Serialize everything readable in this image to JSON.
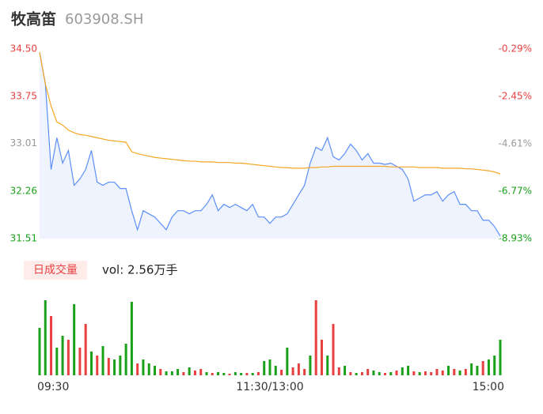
{
  "header": {
    "name": "牧高笛",
    "code": "603908.SH"
  },
  "chart_data": [
    {
      "type": "line",
      "series": [
        {
          "name": "price",
          "color": "#5b8ff9",
          "fill": "#eef3fd",
          "values": [
            34.45,
            33.96,
            32.6,
            33.1,
            32.7,
            32.9,
            32.35,
            32.45,
            32.6,
            32.9,
            32.4,
            32.35,
            32.4,
            32.4,
            32.3,
            32.3,
            31.95,
            31.65,
            31.95,
            31.9,
            31.85,
            31.75,
            31.65,
            31.85,
            31.95,
            31.95,
            31.9,
            31.95,
            31.95,
            32.05,
            32.2,
            31.95,
            32.05,
            32.0,
            32.05,
            32.0,
            31.95,
            32.05,
            31.85,
            31.85,
            31.75,
            31.85,
            31.85,
            31.9,
            32.05,
            32.2,
            32.35,
            32.7,
            32.95,
            32.9,
            33.1,
            32.8,
            32.75,
            32.85,
            33.0,
            32.9,
            32.75,
            32.85,
            32.7,
            32.7,
            32.68,
            32.7,
            32.65,
            32.6,
            32.45,
            32.1,
            32.15,
            32.2,
            32.2,
            32.25,
            32.1,
            32.2,
            32.25,
            32.05,
            32.05,
            31.95,
            31.95,
            31.8,
            31.8,
            31.7,
            31.55
          ]
        },
        {
          "name": "average",
          "color": "#f5a623",
          "values": [
            34.45,
            33.95,
            33.6,
            33.35,
            33.3,
            33.22,
            33.18,
            33.15,
            33.14,
            33.12,
            33.1,
            33.08,
            33.06,
            33.05,
            33.04,
            33.03,
            32.88,
            32.85,
            32.83,
            32.81,
            32.79,
            32.78,
            32.77,
            32.76,
            32.75,
            32.74,
            32.73,
            32.73,
            32.72,
            32.72,
            32.72,
            32.71,
            32.71,
            32.71,
            32.7,
            32.7,
            32.69,
            32.68,
            32.67,
            32.66,
            32.65,
            32.64,
            32.63,
            32.63,
            32.62,
            32.62,
            32.62,
            32.63,
            32.63,
            32.64,
            32.64,
            32.65,
            32.65,
            32.65,
            32.65,
            32.65,
            32.65,
            32.65,
            32.65,
            32.65,
            32.65,
            32.64,
            32.64,
            32.64,
            32.64,
            32.64,
            32.63,
            32.63,
            32.63,
            32.63,
            32.62,
            32.62,
            32.62,
            32.62,
            32.61,
            32.61,
            32.6,
            32.59,
            32.58,
            32.56,
            32.53
          ]
        }
      ],
      "ylim": [
        31.51,
        34.5
      ],
      "yticks": [
        {
          "value": 34.5,
          "label": "34.50"
        },
        33.75,
        33.01,
        32.26,
        31.51
      ],
      "ytick_colors": [
        "#e84040",
        "#e84040",
        "#999999",
        "#1aa01a",
        "#1aa01a"
      ],
      "y2lim": [
        -8.93,
        -0.29
      ],
      "y2ticks": [
        {
          "value": -0.29,
          "label": "-0.29%"
        },
        {
          "value": -2.45,
          "label": "-2.45%"
        },
        {
          "value": -4.61,
          "label": "-4.61%"
        },
        {
          "value": -6.77,
          "label": "-6.77%"
        },
        {
          "value": -8.93,
          "label": "-8.93%"
        }
      ],
      "grid": false
    },
    {
      "type": "bar",
      "title": "日成交量",
      "subtitle": "vol: 2.56万手",
      "categories": [
        "09:30",
        null,
        null,
        null,
        null,
        null,
        null,
        null,
        null,
        null,
        null,
        null,
        null,
        null,
        null,
        null,
        null,
        null,
        null,
        null,
        null,
        null,
        null,
        null,
        null,
        null,
        null,
        null,
        null,
        null,
        null,
        null,
        null,
        null,
        null,
        null,
        null,
        null,
        null,
        null,
        "11:30/13:00",
        null,
        null,
        null,
        null,
        null,
        null,
        null,
        null,
        null,
        null,
        null,
        null,
        null,
        null,
        null,
        null,
        null,
        null,
        null,
        null,
        null,
        null,
        null,
        null,
        null,
        null,
        null,
        null,
        null,
        null,
        null,
        null,
        null,
        null,
        null,
        null,
        null,
        null,
        null,
        "15:00"
      ],
      "values": [
        60,
        95,
        75,
        35,
        50,
        45,
        90,
        35,
        65,
        30,
        25,
        37,
        22,
        20,
        25,
        40,
        93,
        15,
        20,
        15,
        12,
        8,
        5,
        5,
        8,
        4,
        10,
        6,
        8,
        4,
        3,
        4,
        3,
        2,
        4,
        3,
        3,
        3,
        4,
        18,
        20,
        12,
        7,
        35,
        10,
        15,
        8,
        25,
        95,
        45,
        25,
        65,
        10,
        12,
        4,
        3,
        4,
        8,
        6,
        4,
        3,
        4,
        6,
        10,
        12,
        5,
        4,
        5,
        4,
        8,
        6,
        12,
        8,
        6,
        8,
        15,
        12,
        18,
        20,
        25,
        45
      ],
      "colors": [
        "#1aa01a",
        "#1aa01a",
        "#e84040",
        "#1aa01a",
        "#1aa01a",
        "#e84040",
        "#1aa01a",
        "#e84040",
        "#e84040",
        "#1aa01a",
        "#e84040",
        "#1aa01a",
        "#e84040",
        "#1aa01a",
        "#1aa01a",
        "#1aa01a",
        "#1aa01a",
        "#e84040",
        "#1aa01a",
        "#1aa01a",
        "#1aa01a",
        "#e84040",
        "#1aa01a",
        "#1aa01a",
        "#1aa01a",
        "#e84040",
        "#1aa01a",
        "#e84040",
        "#e84040",
        "#1aa01a",
        "#e84040",
        "#1aa01a",
        "#1aa01a",
        "#e84040",
        "#1aa01a",
        "#1aa01a",
        "#e84040",
        "#1aa01a",
        "#e84040",
        "#1aa01a",
        "#1aa01a",
        "#1aa01a",
        "#e84040",
        "#1aa01a",
        "#e84040",
        "#e84040",
        "#e84040",
        "#1aa01a",
        "#e84040",
        "#e84040",
        "#1aa01a",
        "#e84040",
        "#e84040",
        "#1aa01a",
        "#e84040",
        "#1aa01a",
        "#e84040",
        "#e84040",
        "#1aa01a",
        "#1aa01a",
        "#e84040",
        "#1aa01a",
        "#e84040",
        "#1aa01a",
        "#1aa01a",
        "#e84040",
        "#1aa01a",
        "#e84040",
        "#e84040",
        "#e84040",
        "#e84040",
        "#1aa01a",
        "#e84040",
        "#1aa01a",
        "#e84040",
        "#1aa01a",
        "#1aa01a",
        "#e84040",
        "#1aa01a",
        "#1aa01a",
        "#1aa01a"
      ],
      "ylim": [
        0,
        100
      ]
    }
  ]
}
